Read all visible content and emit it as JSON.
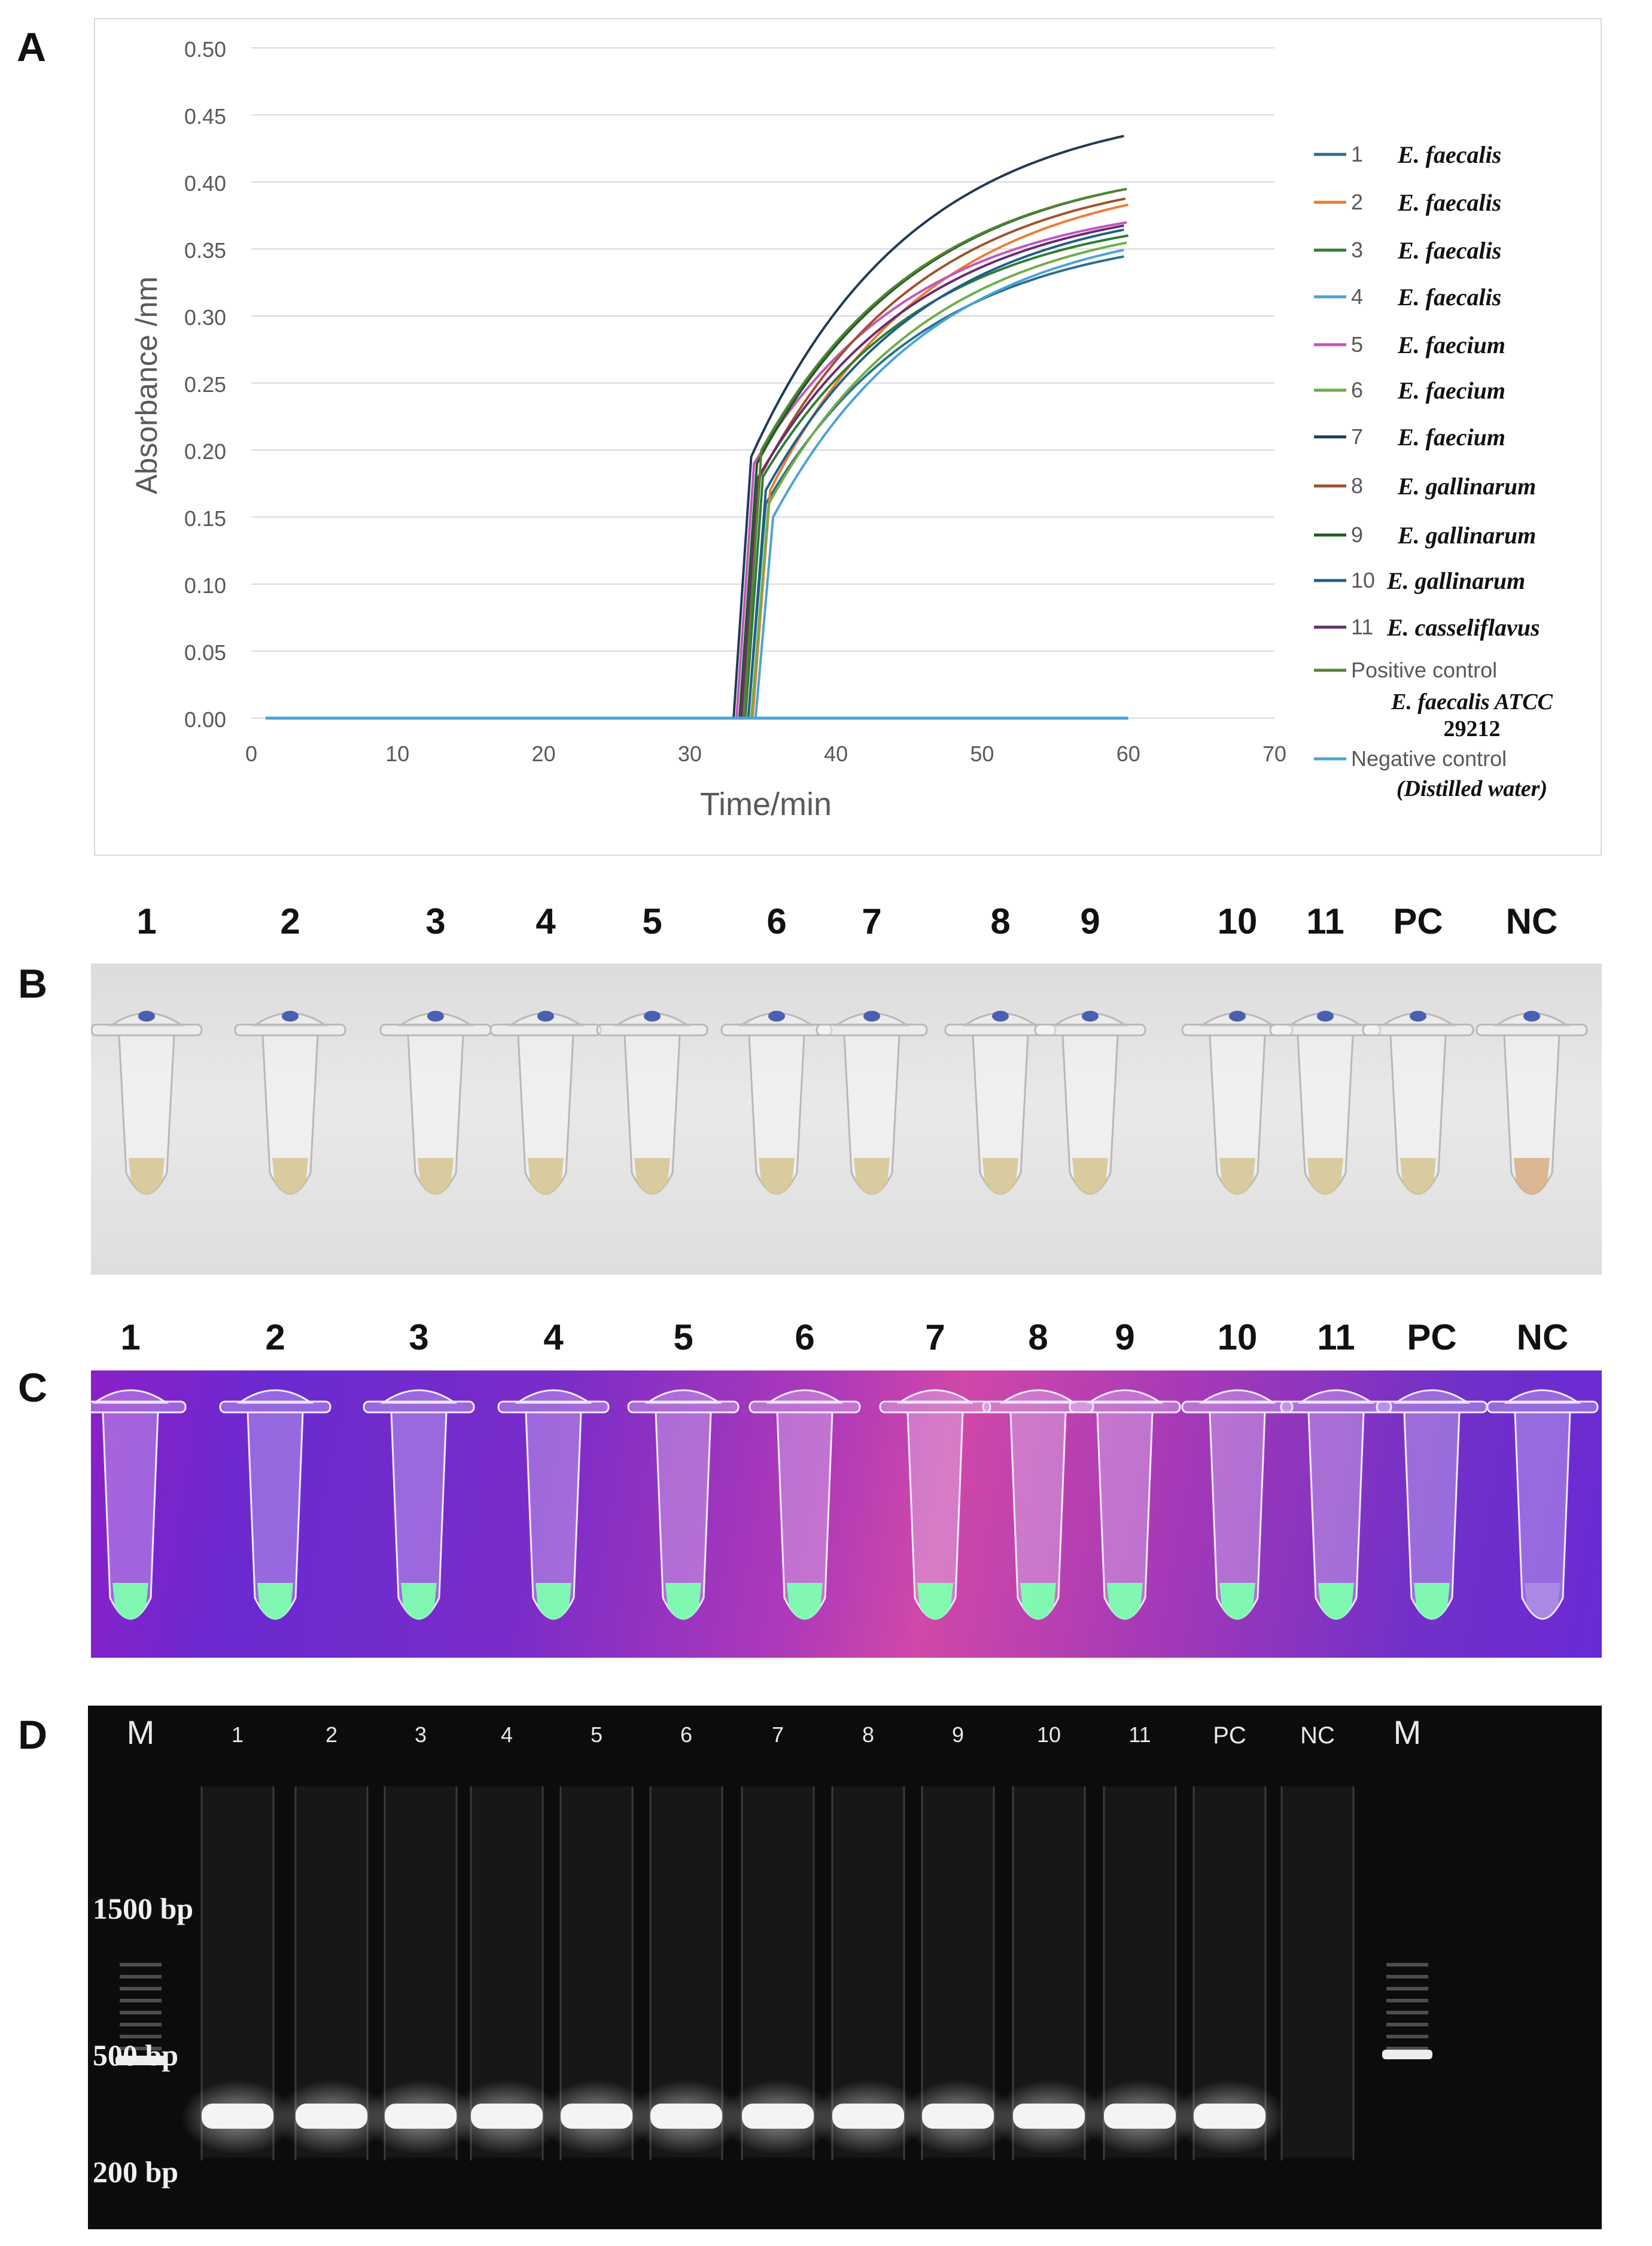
{
  "panels": {
    "a": "A",
    "b": "B",
    "c": "C",
    "d": "D"
  },
  "chart_data": {
    "type": "line",
    "xlabel": "Time/min",
    "ylabel": "Absorbance /nm",
    "xlim": [
      0,
      70
    ],
    "ylim": [
      0,
      0.5
    ],
    "xticks": [
      "0",
      "10",
      "20",
      "30",
      "40",
      "50",
      "60",
      "70"
    ],
    "yticks": [
      "0.00",
      "0.05",
      "0.10",
      "0.15",
      "0.20",
      "0.25",
      "0.30",
      "0.35",
      "0.40",
      "0.45",
      "0.50"
    ],
    "grid": "horizontal",
    "legend_position": "right",
    "series": [
      {
        "num": "1",
        "name": "E. faecalis",
        "color": "#2E6E8E",
        "onset": 34.0,
        "ramp_to": 0.16,
        "final": 0.345
      },
      {
        "num": "2",
        "name": "E. faecalis",
        "color": "#ED7D31",
        "onset": 34.3,
        "ramp_to": 0.17,
        "final": 0.383
      },
      {
        "num": "3",
        "name": "E. faecalis",
        "color": "#2E7D32",
        "onset": 33.8,
        "ramp_to": 0.18,
        "final": 0.36
      },
      {
        "num": "4",
        "name": "E. faecalis",
        "color": "#4BA3D6",
        "onset": 34.5,
        "ramp_to": 0.15,
        "final": 0.35
      },
      {
        "num": "5",
        "name": "E. faecium",
        "color": "#C056C0",
        "onset": 33.2,
        "ramp_to": 0.19,
        "final": 0.37
      },
      {
        "num": "6",
        "name": "E. faecium",
        "color": "#70AD47",
        "onset": 34.2,
        "ramp_to": 0.16,
        "final": 0.355
      },
      {
        "num": "7",
        "name": "E. faecium",
        "color": "#1F3B57",
        "onset": 33.0,
        "ramp_to": 0.195,
        "final": 0.435
      },
      {
        "num": "8",
        "name": "E. gallinarum",
        "color": "#A0522D",
        "onset": 33.6,
        "ramp_to": 0.18,
        "final": 0.388
      },
      {
        "num": "9",
        "name": "E. gallinarum",
        "color": "#1B5E20",
        "onset": 33.4,
        "ramp_to": 0.19,
        "final": 0.395
      },
      {
        "num": "10",
        "name": "E. gallinarum",
        "color": "#1F5F8B",
        "onset": 34.0,
        "ramp_to": 0.17,
        "final": 0.365
      },
      {
        "num": "11",
        "name": "E. casseliflavus",
        "color": "#6A2C70",
        "onset": 33.5,
        "ramp_to": 0.18,
        "final": 0.368
      },
      {
        "num": "",
        "name": "Positive control",
        "sub": "E. faecalis ATCC 29212",
        "color": "#548235",
        "onset": 33.7,
        "ramp_to": 0.2,
        "final": 0.395
      },
      {
        "num": "",
        "name": "Negative control",
        "sub": "(Distilled water)",
        "color": "#4BA3D6",
        "flat": true
      }
    ]
  },
  "tube_labels": [
    "1",
    "2",
    "3",
    "4",
    "5",
    "6",
    "7",
    "8",
    "9",
    "10",
    "11",
    "PC",
    "NC"
  ],
  "gel": {
    "lanes": [
      "M",
      "1",
      "2",
      "3",
      "4",
      "5",
      "6",
      "7",
      "8",
      "9",
      "10",
      "11",
      "PC",
      "NC",
      "M"
    ],
    "markers": [
      "1500 bp",
      "500 bp",
      "200 bp"
    ]
  }
}
